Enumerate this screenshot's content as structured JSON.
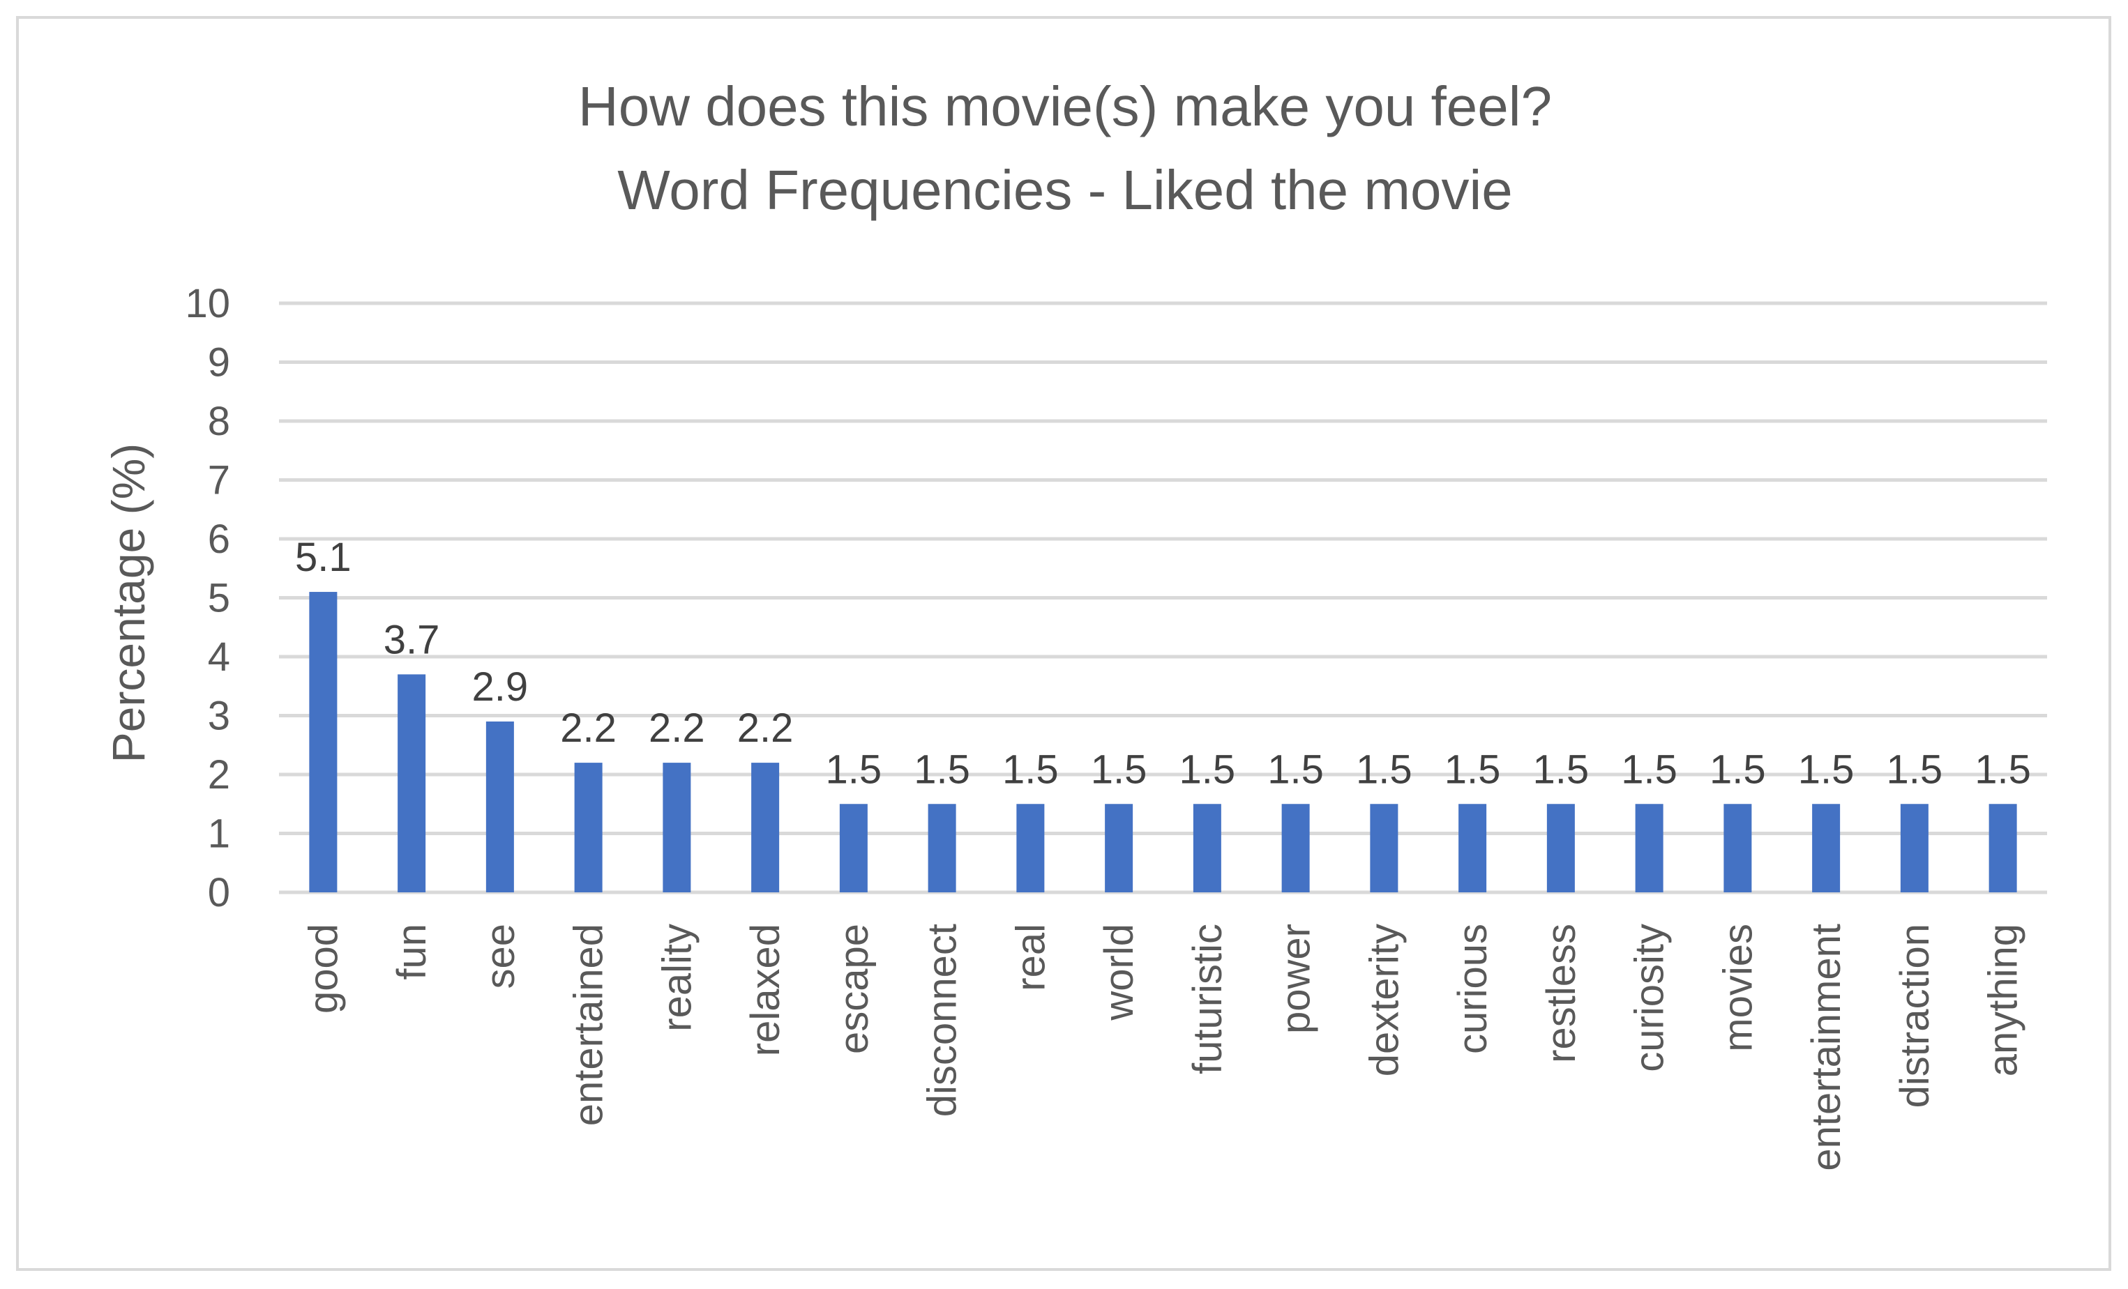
{
  "chart_data": {
    "type": "bar",
    "title": [
      "How does this movie(s) make you feel?",
      "Word Frequencies - Liked the movie"
    ],
    "xlabel": "",
    "ylabel": "Percentage (%)",
    "ylim": [
      0,
      10
    ],
    "yticks": [
      0,
      1,
      2,
      3,
      4,
      5,
      6,
      7,
      8,
      9,
      10
    ],
    "grid": true,
    "legend": "none",
    "colors": {
      "bar": "#4472c4",
      "grid": "#d9d9d9",
      "text": "#595959",
      "data_label": "#404040"
    },
    "categories": [
      "good",
      "fun",
      "see",
      "entertained",
      "reality",
      "relaxed",
      "escape",
      "disconnect",
      "real",
      "world",
      "futuristic",
      "power",
      "dexterity",
      "curious",
      "restless",
      "curiosity",
      "movies",
      "entertainment",
      "distraction",
      "anything"
    ],
    "values": [
      5.1,
      3.7,
      2.9,
      2.2,
      2.2,
      2.2,
      1.5,
      1.5,
      1.5,
      1.5,
      1.5,
      1.5,
      1.5,
      1.5,
      1.5,
      1.5,
      1.5,
      1.5,
      1.5,
      1.5
    ],
    "data_labels": [
      "5.1",
      "3.7",
      "2.9",
      "2.2",
      "2.2",
      "2.2",
      "1.5",
      "1.5",
      "1.5",
      "1.5",
      "1.5",
      "1.5",
      "1.5",
      "1.5",
      "1.5",
      "1.5",
      "1.5",
      "1.5",
      "1.5",
      "1.5"
    ]
  }
}
